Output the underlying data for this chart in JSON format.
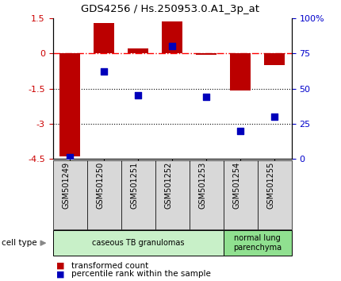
{
  "title": "GDS4256 / Hs.250953.0.A1_3p_at",
  "categories": [
    "GSM501249",
    "GSM501250",
    "GSM501251",
    "GSM501252",
    "GSM501253",
    "GSM501254",
    "GSM501255"
  ],
  "red_values": [
    -4.4,
    1.3,
    0.2,
    1.35,
    -0.05,
    -1.6,
    -0.5
  ],
  "blue_values": [
    1,
    62,
    45,
    80,
    44,
    20,
    30
  ],
  "ylim_left": [
    -4.5,
    1.5
  ],
  "ylim_right": [
    0,
    100
  ],
  "yticks_left": [
    1.5,
    0,
    -1.5,
    -3,
    -4.5
  ],
  "yticks_left_labels": [
    "1.5",
    "0",
    "-1.5",
    "-3",
    "-4.5"
  ],
  "yticks_right": [
    100,
    75,
    50,
    25,
    0
  ],
  "yticks_right_labels": [
    "100%",
    "75",
    "50",
    "25",
    "0"
  ],
  "cell_type_groups": [
    {
      "label": "caseous TB granulomas",
      "start": 0,
      "end": 4,
      "color": "#c8f0c8"
    },
    {
      "label": "normal lung\nparenchyma",
      "start": 5,
      "end": 6,
      "color": "#90e090"
    }
  ],
  "bar_color": "#bb0000",
  "dot_color": "#0000bb",
  "bar_width": 0.6,
  "dot_size": 35,
  "left_tick_color": "#cc0000",
  "right_tick_color": "#0000cc",
  "background_color": "#ffffff",
  "plot_bg_color": "#ffffff",
  "legend_red_label": "transformed count",
  "legend_blue_label": "percentile rank within the sample",
  "gray_box_color": "#d8d8d8",
  "cell_type_label": "cell type"
}
